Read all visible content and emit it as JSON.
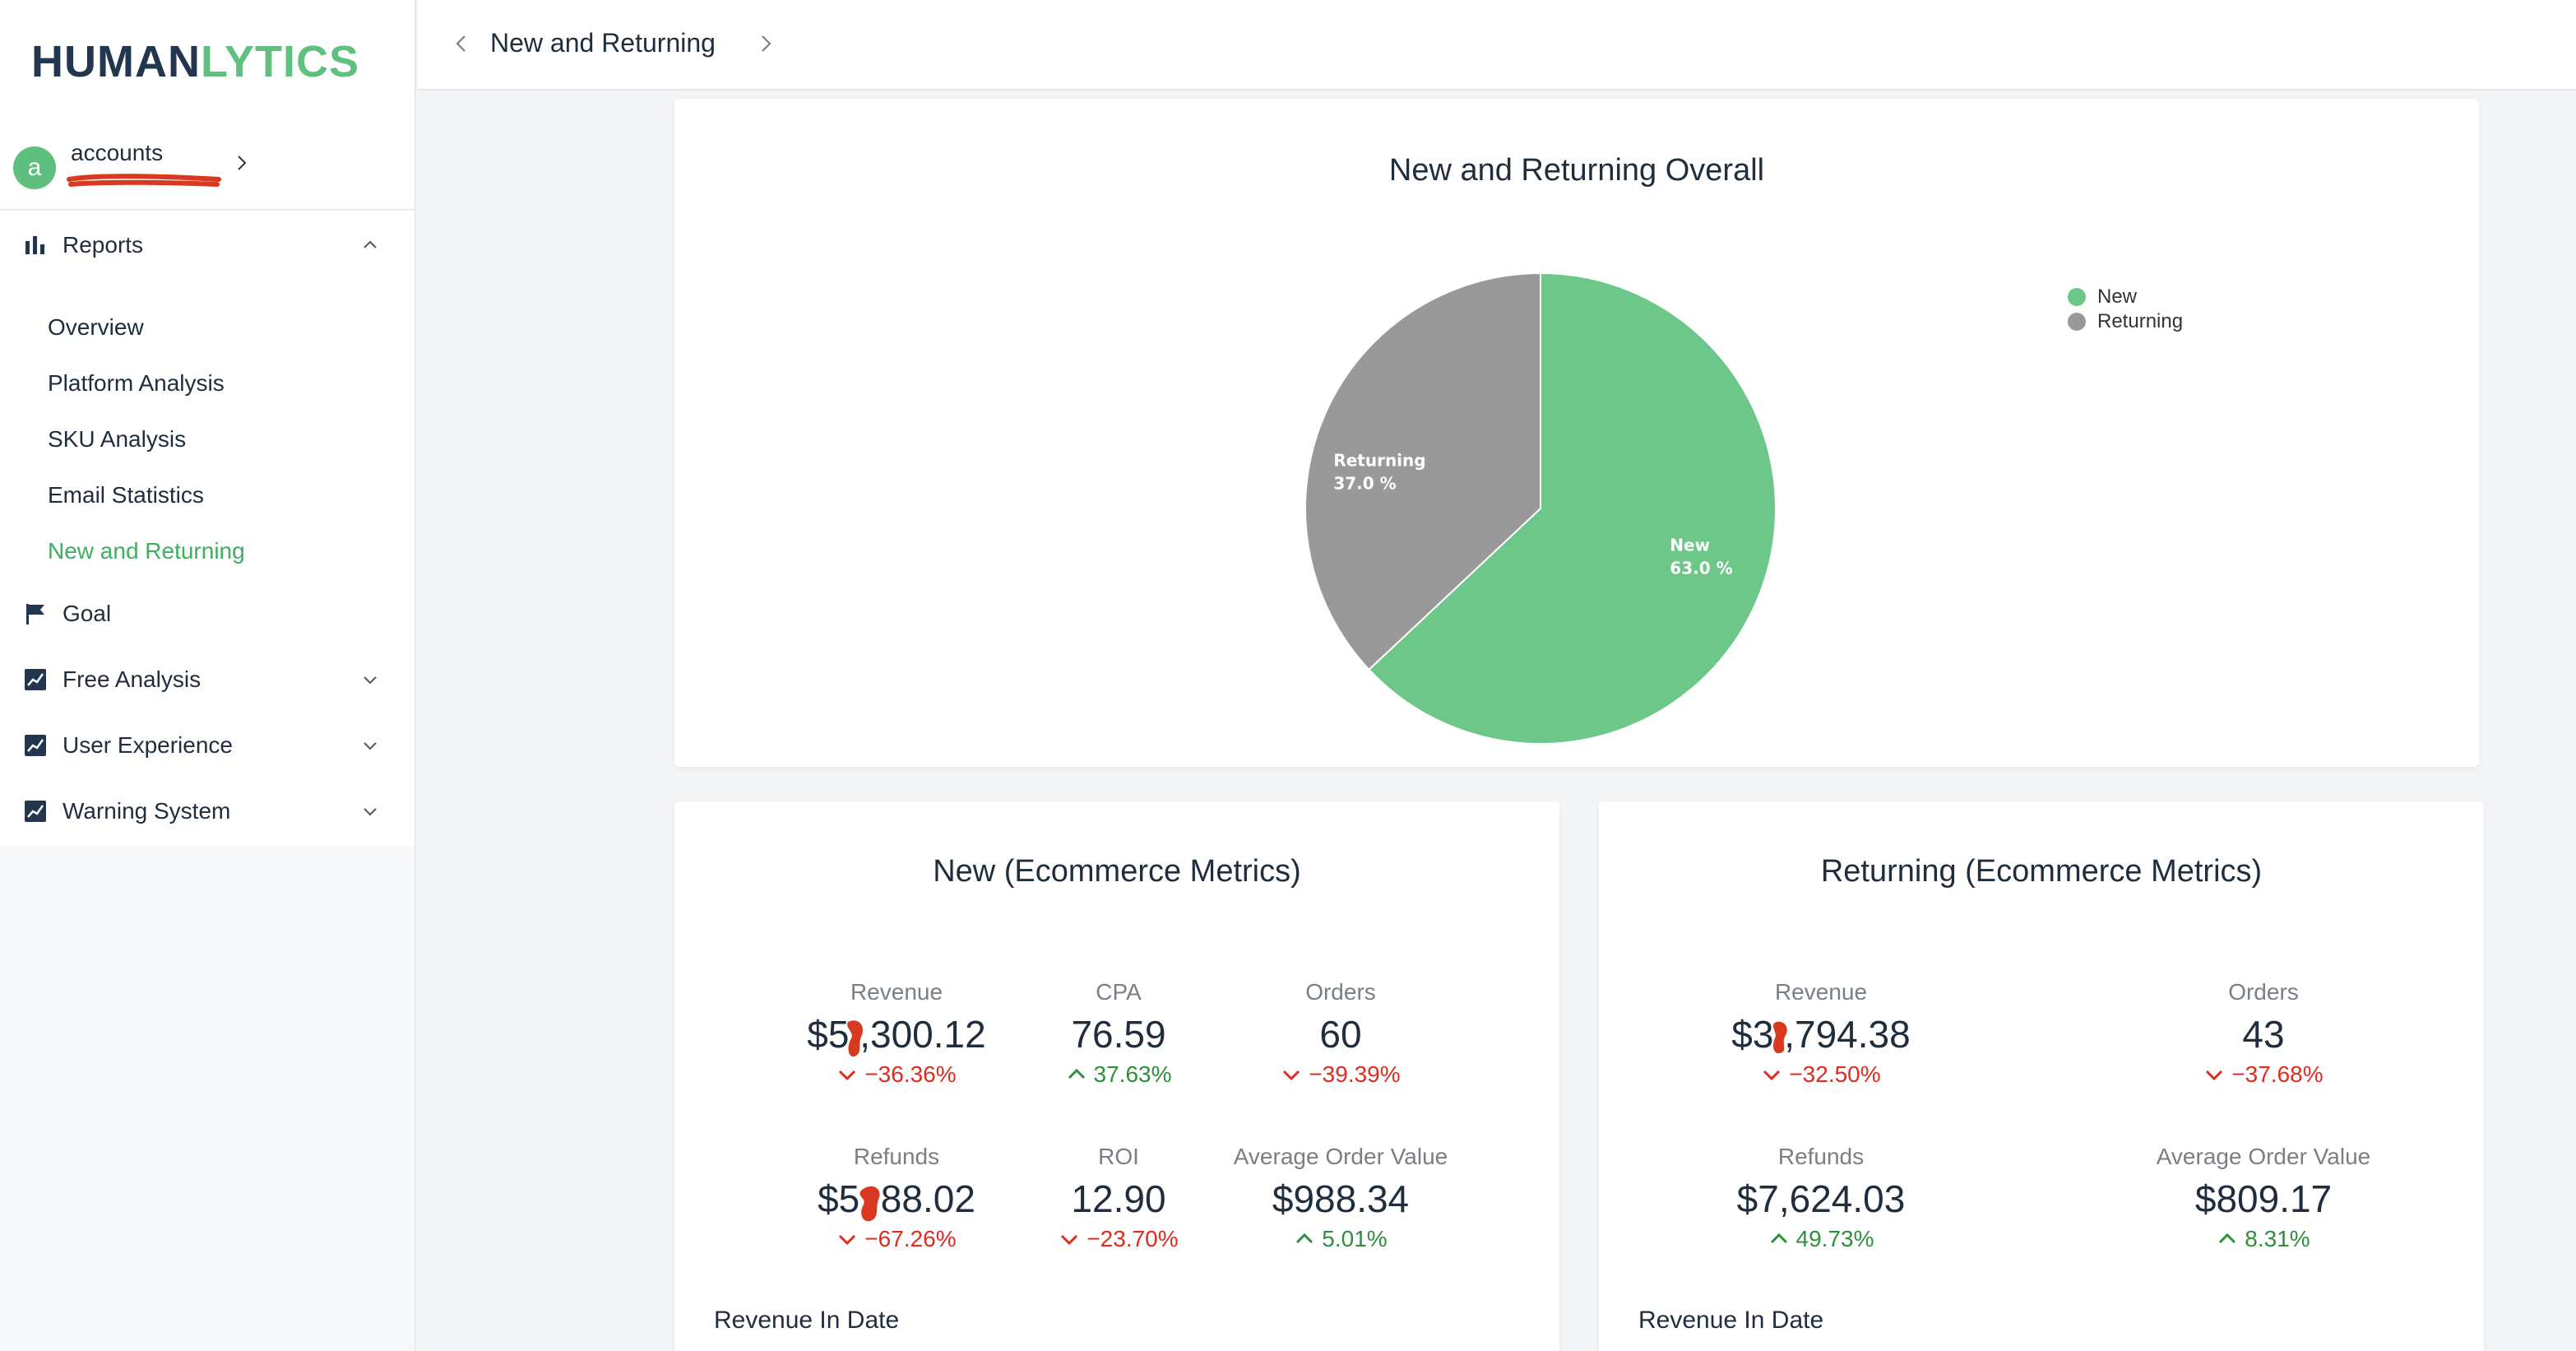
{
  "brand": {
    "logo_part1": "HUMAN",
    "logo_part2": "LYTICS"
  },
  "account": {
    "avatar_letter": "a",
    "name": "accounts"
  },
  "sidebar": {
    "reports": "Reports",
    "sub_items": [
      "Overview",
      "Platform Analysis",
      "SKU Analysis",
      "Email Statistics",
      "New and Returning"
    ],
    "goal": "Goal",
    "free_analysis": "Free Analysis",
    "user_experience": "User Experience",
    "warning_system": "Warning System"
  },
  "header": {
    "title": "New and Returning"
  },
  "overall": {
    "title": "New and Returning Overall",
    "legend": [
      {
        "label": "New",
        "color": "#6cc788"
      },
      {
        "label": "Returning",
        "color": "#999999"
      }
    ],
    "slice_labels": {
      "new_name": "New",
      "new_pct": "63.0 %",
      "returning_name": "Returning",
      "returning_pct": "37.0 %"
    }
  },
  "chart_data": {
    "type": "pie",
    "title": "New and Returning Overall",
    "categories": [
      "New",
      "Returning"
    ],
    "values": [
      63.0,
      37.0
    ],
    "colors": [
      "#6cc788",
      "#999999"
    ],
    "legend_position": "top-right"
  },
  "new_metrics": {
    "title": "New (Ecommerce Metrics)",
    "revenue": {
      "label": "Revenue",
      "value": "$5 ,300.12",
      "change": "−36.36%",
      "direction": "down"
    },
    "cpa": {
      "label": "CPA",
      "value": "76.59",
      "change": "37.63%",
      "direction": "up"
    },
    "orders": {
      "label": "Orders",
      "value": "60",
      "change": "−39.39%",
      "direction": "down"
    },
    "refunds": {
      "label": "Refunds",
      "value": "$5,  88.02",
      "change": "−67.26%",
      "direction": "down"
    },
    "roi": {
      "label": "ROI",
      "value": "12.90",
      "change": "−23.70%",
      "direction": "down"
    },
    "aov": {
      "label": "Average Order Value",
      "value": "$988.34",
      "change": "5.01%",
      "direction": "up"
    },
    "sub": "Revenue In Date"
  },
  "returning_metrics": {
    "title": "Returning (Ecommerce Metrics)",
    "revenue": {
      "label": "Revenue",
      "value": "$3 ,794.38",
      "change": "−32.50%",
      "direction": "down"
    },
    "orders": {
      "label": "Orders",
      "value": "43",
      "change": "−37.68%",
      "direction": "down"
    },
    "refunds": {
      "label": "Refunds",
      "value": "$7,624.03",
      "change": "49.73%",
      "direction": "up"
    },
    "aov": {
      "label": "Average Order Value",
      "value": "$809.17",
      "change": "8.31%",
      "direction": "up"
    },
    "sub": "Revenue In Date"
  },
  "colors": {
    "accent": "#5fbf7f",
    "nav_text": "#1f2d3d",
    "down": "#e02b1f",
    "up": "#2f8f3a"
  }
}
